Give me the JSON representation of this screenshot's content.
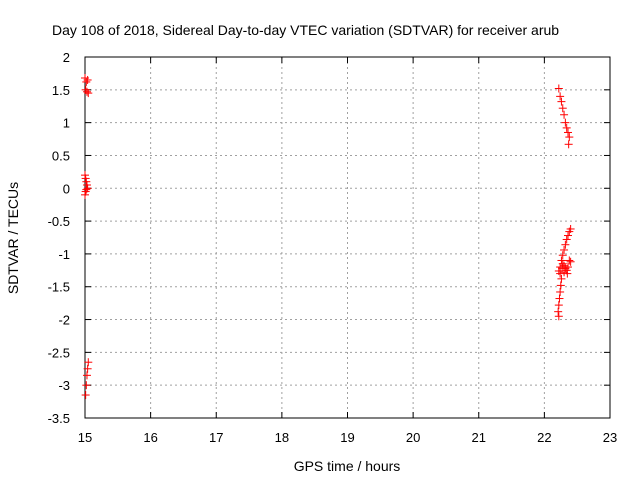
{
  "chart_data": {
    "type": "scatter",
    "title": "Day 108 of 2018, Sidereal Day-to-day VTEC variation (SDTVAR) for receiver arub",
    "xlabel": "GPS time / hours",
    "ylabel": "SDTVAR / TECUs",
    "xlim": [
      15,
      23
    ],
    "ylim": [
      -3.5,
      2
    ],
    "xticks": [
      "15",
      "16",
      "17",
      "18",
      "19",
      "20",
      "21",
      "22",
      "23"
    ],
    "yticks": [
      "2",
      "1.5",
      "1",
      "0.5",
      "0",
      "-0.5",
      "-1",
      "-1.5",
      "-2",
      "-2.5",
      "-3",
      "-3.5"
    ],
    "xtick_values": [
      15,
      16,
      17,
      18,
      19,
      20,
      21,
      22,
      23
    ],
    "ytick_values": [
      2,
      1.5,
      1,
      0.5,
      0,
      -0.5,
      -1,
      -1.5,
      -2,
      -2.5,
      -3,
      -3.5
    ],
    "grid": true,
    "marker": "+",
    "marker_color": "#ff0000",
    "series": [
      {
        "name": "SDTVAR",
        "points": [
          [
            15.0,
            1.68
          ],
          [
            15.02,
            1.62
          ],
          [
            15.04,
            1.65
          ],
          [
            15.01,
            1.5
          ],
          [
            15.03,
            1.47
          ],
          [
            15.05,
            1.45
          ],
          [
            15.0,
            0.2
          ],
          [
            15.01,
            0.15
          ],
          [
            15.02,
            0.1
          ],
          [
            15.03,
            0.05
          ],
          [
            15.04,
            0.0
          ],
          [
            15.02,
            -0.02
          ],
          [
            15.01,
            -0.05
          ],
          [
            15.0,
            -0.1
          ],
          [
            15.05,
            -2.65
          ],
          [
            15.04,
            -2.75
          ],
          [
            15.03,
            -2.85
          ],
          [
            15.02,
            -3.0
          ],
          [
            15.01,
            -3.15
          ],
          [
            22.22,
            1.52
          ],
          [
            22.24,
            1.4
          ],
          [
            22.26,
            1.32
          ],
          [
            22.28,
            1.22
          ],
          [
            22.3,
            1.12
          ],
          [
            22.32,
            1.0
          ],
          [
            22.34,
            0.92
          ],
          [
            22.36,
            0.85
          ],
          [
            22.38,
            0.78
          ],
          [
            22.37,
            0.67
          ],
          [
            22.4,
            -0.62
          ],
          [
            22.38,
            -0.66
          ],
          [
            22.36,
            -0.72
          ],
          [
            22.34,
            -0.78
          ],
          [
            22.32,
            -0.86
          ],
          [
            22.3,
            -0.94
          ],
          [
            22.28,
            -1.02
          ],
          [
            22.26,
            -1.1
          ],
          [
            22.24,
            -1.2
          ],
          [
            22.22,
            -1.26
          ],
          [
            22.24,
            -1.3
          ],
          [
            22.26,
            -1.38
          ],
          [
            22.25,
            -1.48
          ],
          [
            22.24,
            -1.58
          ],
          [
            22.23,
            -1.68
          ],
          [
            22.22,
            -1.78
          ],
          [
            22.21,
            -1.88
          ],
          [
            22.22,
            -1.95
          ],
          [
            22.28,
            -1.15
          ],
          [
            22.3,
            -1.18
          ],
          [
            22.32,
            -1.22
          ],
          [
            22.34,
            -1.25
          ],
          [
            22.36,
            -1.2
          ],
          [
            22.38,
            -1.1
          ],
          [
            22.4,
            -1.12
          ],
          [
            22.35,
            -1.3
          ],
          [
            22.3,
            -1.28
          ],
          [
            22.27,
            -1.22
          ]
        ]
      }
    ]
  }
}
